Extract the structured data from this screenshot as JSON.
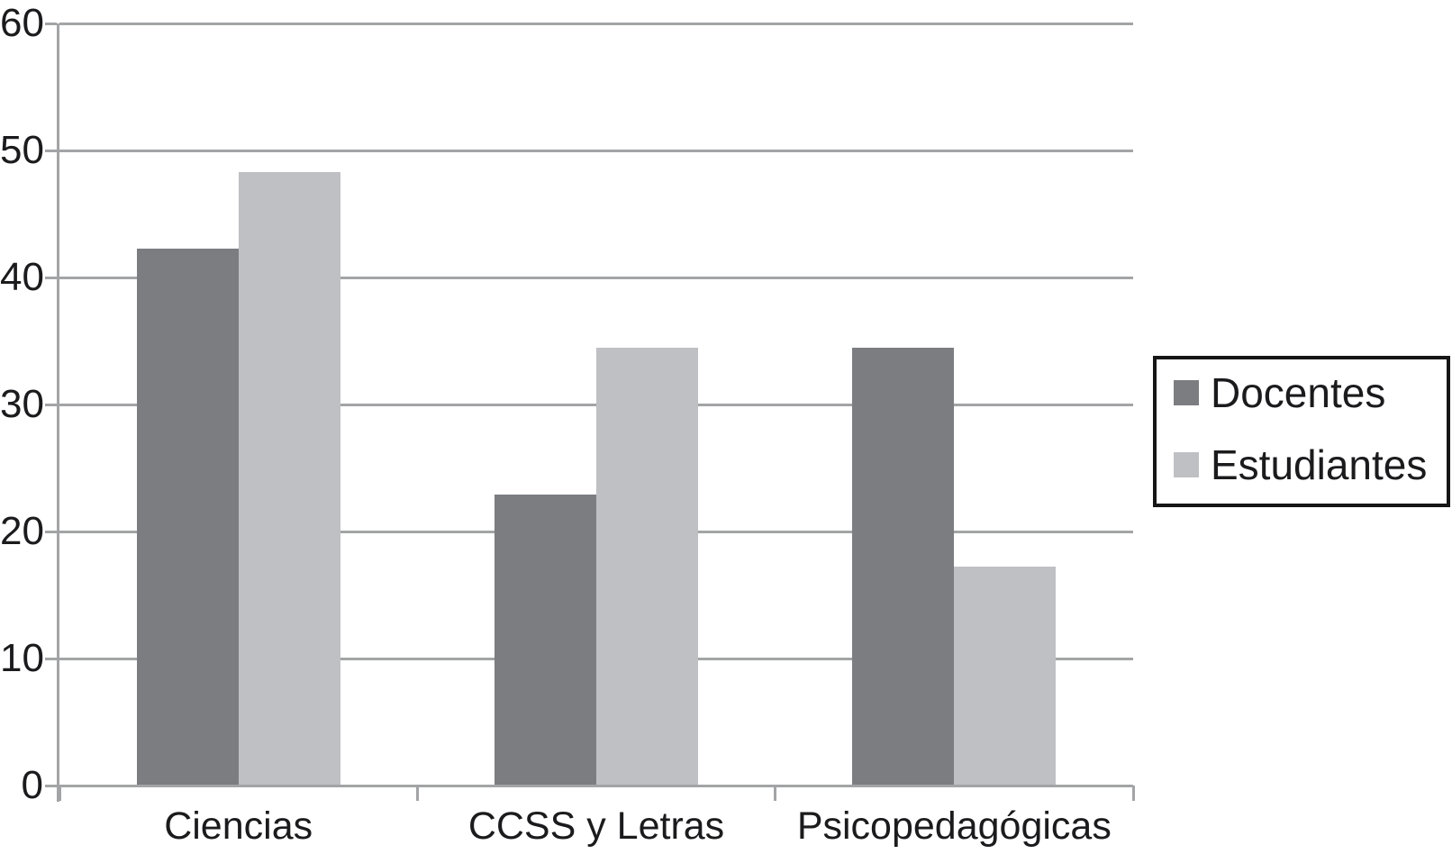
{
  "chart_data": {
    "type": "bar",
    "categories": [
      "Ciencias",
      "CCSS y Letras",
      "Psicopedagógicas"
    ],
    "series": [
      {
        "name": "Docentes",
        "color": "#7c7d81",
        "values": [
          42.3,
          22.9,
          34.5
        ]
      },
      {
        "name": "Estudiantes",
        "color": "#bfc0c4",
        "values": [
          48.3,
          34.5,
          17.2
        ]
      }
    ],
    "title": "",
    "xlabel": "",
    "ylabel": "",
    "ylim": [
      0,
      60
    ],
    "yticks": [
      0,
      10,
      20,
      30,
      40,
      50,
      60
    ],
    "grid": true,
    "legend_position": "right",
    "axis_color": "#a3a4a6",
    "text_color": "#1b1b1d",
    "background": "#ffffff"
  }
}
